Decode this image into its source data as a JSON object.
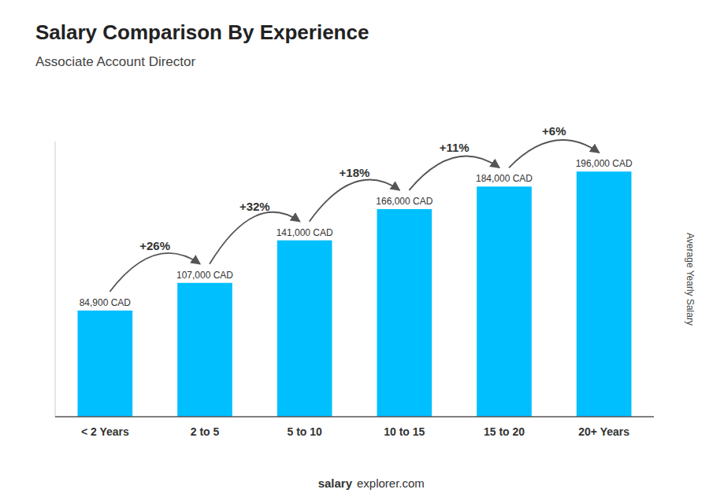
{
  "chart_data": {
    "type": "bar",
    "title": "Salary Comparison By Experience",
    "subtitle": "Associate Account Director",
    "y_label": "Average Yearly Salary",
    "categories": [
      "< 2 Years",
      "2 to 5",
      "5 to 10",
      "10 to 15",
      "15 to 20",
      "20+ Years"
    ],
    "values": [
      84900,
      107000,
      141000,
      166000,
      184000,
      196000
    ],
    "value_labels": [
      "84,900 CAD",
      "107,000 CAD",
      "141,000 CAD",
      "166,000 CAD",
      "184,000 CAD",
      "196,000 CAD"
    ],
    "data_labels": true,
    "annotations": [
      "+26%",
      "+32%",
      "+18%",
      "+11%",
      "+6%"
    ],
    "footer": [
      "salary",
      "explorer.com"
    ],
    "color": "#00bfff",
    "ylim": [
      0,
      220000
    ],
    "tick_labels": "x",
    "grid": false
  }
}
